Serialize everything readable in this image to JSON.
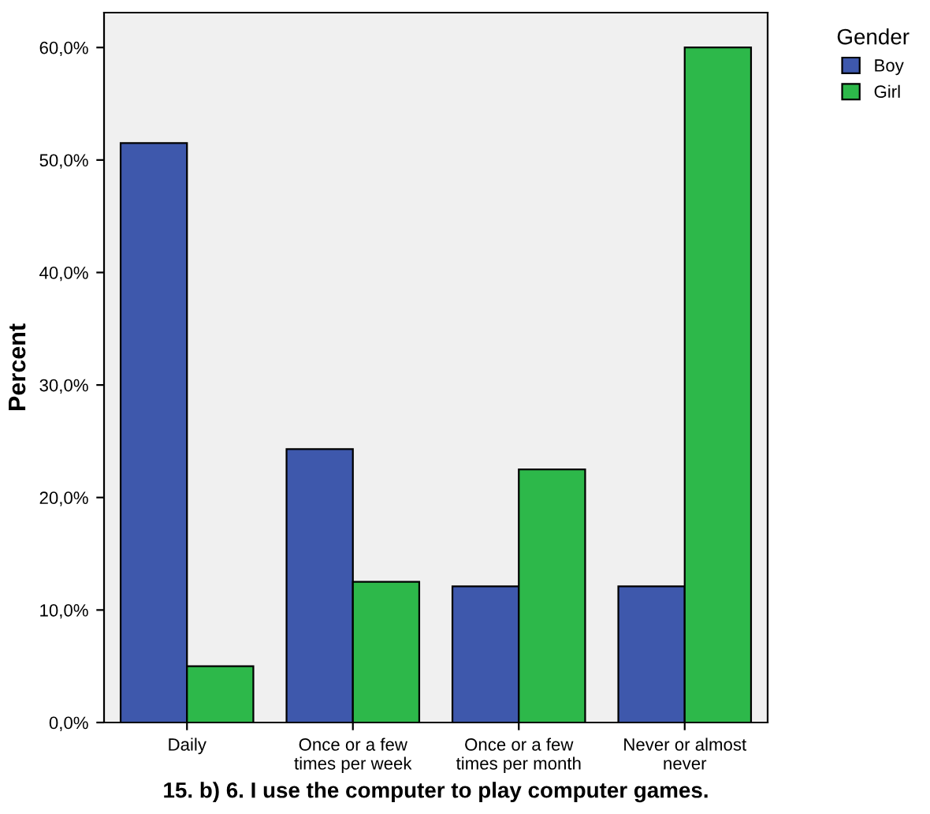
{
  "chart_data": {
    "type": "bar",
    "title": "15. b) 6. I use the computer to play computer games.",
    "ylabel": "Percent",
    "legend_title": "Gender",
    "categories": [
      "Daily",
      "Once or a few\ntimes per week",
      "Once or a few\ntimes per month",
      "Never or almost\nnever"
    ],
    "series": [
      {
        "name": "Boy",
        "color": "#3e58ac",
        "values": [
          51.5,
          24.3,
          12.1,
          12.1
        ]
      },
      {
        "name": "Girl",
        "color": "#2db84a",
        "values": [
          5.0,
          12.5,
          22.5,
          60.0
        ]
      }
    ],
    "ylim": [
      0,
      63.1
    ],
    "yticks": [
      {
        "value": 0,
        "label": "0,0%"
      },
      {
        "value": 10,
        "label": "10,0%"
      },
      {
        "value": 20,
        "label": "20,0%"
      },
      {
        "value": 30,
        "label": "30,0%"
      },
      {
        "value": 40,
        "label": "40,0%"
      },
      {
        "value": 50,
        "label": "50,0%"
      },
      {
        "value": 60,
        "label": "60,0%"
      }
    ],
    "grid": false,
    "legend": "top right"
  }
}
